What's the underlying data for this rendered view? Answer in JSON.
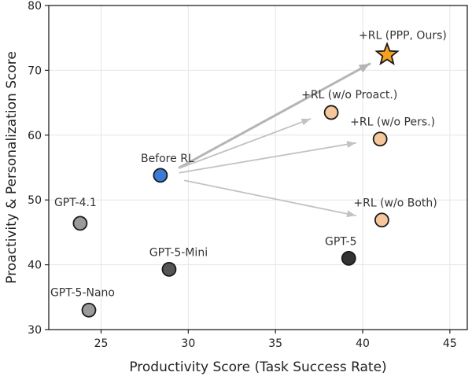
{
  "chart_data": {
    "type": "scatter",
    "xlabel": "Productivity Score (Task Success Rate)",
    "ylabel": "Proactivity & Personalization Score",
    "xlim": [
      22,
      46
    ],
    "ylim": [
      30,
      80
    ],
    "xticks": [
      "25",
      "30",
      "35",
      "40",
      "45"
    ],
    "yticks": [
      "30",
      "40",
      "50",
      "60",
      "70",
      "80"
    ],
    "grid": true,
    "points": [
      {
        "label": "GPT-4.1",
        "x": 23.8,
        "y": 46.4,
        "color": "#9a9a9a",
        "marker": "circle"
      },
      {
        "label": "GPT-5-Nano",
        "x": 24.3,
        "y": 33.0,
        "color": "#9a9a9a",
        "marker": "circle"
      },
      {
        "label": "GPT-5-Mini",
        "x": 28.9,
        "y": 39.3,
        "color": "#555555",
        "marker": "circle"
      },
      {
        "label": "GPT-5",
        "x": 39.2,
        "y": 41.0,
        "color": "#333333",
        "marker": "circle"
      },
      {
        "label": "Before RL",
        "x": 28.4,
        "y": 53.8,
        "color": "#3a7bd5",
        "marker": "circle"
      },
      {
        "label": "+RL (w/o Proact.)",
        "x": 38.2,
        "y": 63.5,
        "color": "#f6c79a",
        "marker": "circle"
      },
      {
        "label": "+RL (w/o Pers.)",
        "x": 41.0,
        "y": 59.4,
        "color": "#f6c79a",
        "marker": "circle"
      },
      {
        "label": "+RL (w/o Both)",
        "x": 41.1,
        "y": 46.9,
        "color": "#f6c79a",
        "marker": "circle"
      },
      {
        "label": "+RL (PPP, Ours)",
        "x": 41.4,
        "y": 72.4,
        "color": "#f5a020",
        "marker": "star"
      }
    ],
    "arrows": [
      {
        "from": [
          29.5,
          55.0
        ],
        "to": [
          40.4,
          71.0
        ],
        "emphasis": true
      },
      {
        "from": [
          29.5,
          54.9
        ],
        "to": [
          37.0,
          62.5
        ],
        "emphasis": false
      },
      {
        "from": [
          29.5,
          54.2
        ],
        "to": [
          39.6,
          58.8
        ],
        "emphasis": false
      },
      {
        "from": [
          29.8,
          53.0
        ],
        "to": [
          39.6,
          47.6
        ],
        "emphasis": false
      }
    ]
  }
}
